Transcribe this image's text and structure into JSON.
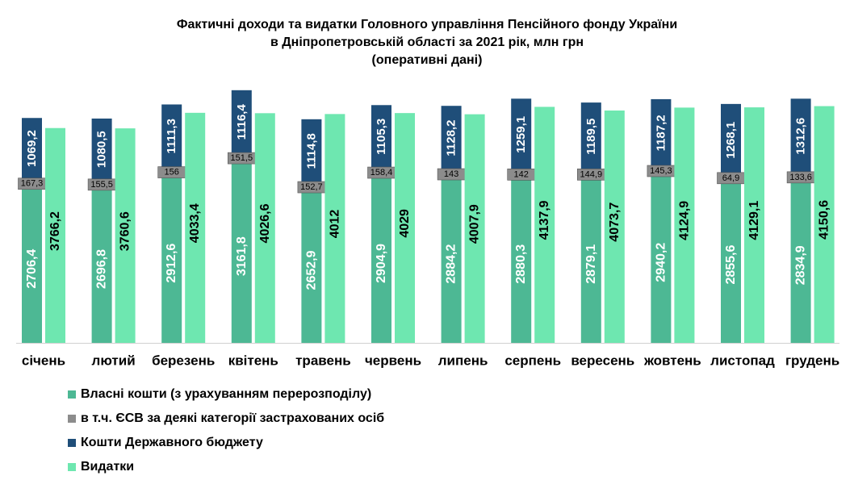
{
  "chart_data": {
    "type": "bar",
    "stacked_with_side_bar": true,
    "title_lines": [
      "Фактичні доходи та видатки Головного управління Пенсійного фонду України",
      "в Дніпропетровській області за 2021 рік,  млн грн",
      "(оперативні дані)"
    ],
    "categories": [
      "січень",
      "лютий",
      "березень",
      "квітень",
      "травень",
      "червень",
      "липень",
      "серпень",
      "вересень",
      "жовтень",
      "листопад",
      "грудень"
    ],
    "series": [
      {
        "name": "Власні кошти (з урахуванням перерозподілу)",
        "color": "#4DB894",
        "values": [
          2706.4,
          2696.8,
          2912.6,
          3161.8,
          2652.9,
          2904.9,
          2884.2,
          2880.3,
          2879.1,
          2940.2,
          2855.6,
          2834.9
        ],
        "labels": [
          "2706,4",
          "2696,8",
          "2912,6",
          "3161,8",
          "2652,9",
          "2904,9",
          "2884,2",
          "2880,3",
          "2879,1",
          "2940,2",
          "2855,6",
          "2834,9"
        ]
      },
      {
        "name": "в т.ч. ЄСВ за деякі категорії застрахованих осіб",
        "color": "#8C8C8C",
        "values": [
          167.3,
          155.5,
          156,
          151.5,
          152.7,
          158.4,
          143,
          142,
          144.9,
          145.3,
          64.9,
          133.6
        ],
        "labels": [
          "167,3",
          "155,5",
          "156",
          "151,5",
          "152,7",
          "158,4",
          "143",
          "142",
          "144,9",
          "145,3",
          "64,9",
          "133,6"
        ]
      },
      {
        "name": "Кошти Державного бюджету",
        "color": "#1F4E79",
        "values": [
          1069.2,
          1080.5,
          1111.3,
          1116.4,
          1114.8,
          1105.3,
          1128.2,
          1259.1,
          1189.5,
          1187.2,
          1268.1,
          1312.6
        ],
        "labels": [
          "1069,2",
          "1080,5",
          "1111,3",
          "1116,4",
          "1114,8",
          "1105,3",
          "1128,2",
          "1259,1",
          "1189,5",
          "1187,2",
          "1268,1",
          "1312,6"
        ]
      },
      {
        "name": "Видатки",
        "color": "#6EE7B0",
        "values": [
          3766.2,
          3760.6,
          4033.4,
          4026.6,
          4012,
          4029,
          4007.9,
          4137.9,
          4073.7,
          4124.9,
          4129.1,
          4150.6
        ],
        "labels": [
          "3766,2",
          "3760,6",
          "4033,4",
          "4026,6",
          "4012",
          "4029",
          "4007,9",
          "4137,9",
          "4073,7",
          "4124,9",
          "4129,1",
          "4150,6"
        ]
      }
    ]
  }
}
